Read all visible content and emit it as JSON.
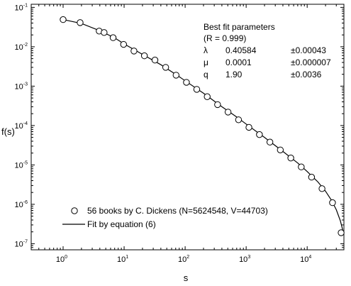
{
  "chart_data": {
    "type": "scatter",
    "xscale": "log",
    "yscale": "log",
    "xlim": [
      0.3,
      40000
    ],
    "ylim": [
      7e-08,
      0.12
    ],
    "xlabel": "s",
    "ylabel": "f(s)",
    "grid": false,
    "x_ticks": [
      {
        "base": "10",
        "exp": "0",
        "value": 1
      },
      {
        "base": "10",
        "exp": "1",
        "value": 10
      },
      {
        "base": "10",
        "exp": "2",
        "value": 100
      },
      {
        "base": "10",
        "exp": "3",
        "value": 1000
      },
      {
        "base": "10",
        "exp": "4",
        "value": 10000
      }
    ],
    "y_ticks": [
      {
        "base": "10",
        "exp": "-1",
        "value": 0.1
      },
      {
        "base": "10",
        "exp": "-2",
        "value": 0.01
      },
      {
        "base": "10",
        "exp": "-3",
        "value": 0.001
      },
      {
        "base": "10",
        "exp": "-4",
        "value": 0.0001
      },
      {
        "base": "10",
        "exp": "-5",
        "value": 1e-05
      },
      {
        "base": "10",
        "exp": "-6",
        "value": 1e-06
      },
      {
        "base": "10",
        "exp": "-7",
        "value": 1e-07
      }
    ],
    "series": [
      {
        "name": "56  books by C. Dickens (N=5624548, V=44703)",
        "marker": "open-circle",
        "x": [
          1,
          1.9,
          3.9,
          4.7,
          6.6,
          9.8,
          14.5,
          21.5,
          32,
          48,
          71,
          105,
          155,
          230,
          340,
          505,
          750,
          1110,
          1650,
          2450,
          3630,
          5390,
          8000,
          11800,
          17500,
          26000,
          36000
        ],
        "y": [
          0.049,
          0.041,
          0.025,
          0.023,
          0.017,
          0.0115,
          0.0078,
          0.0059,
          0.0046,
          0.003,
          0.0019,
          0.00125,
          0.00083,
          0.00054,
          0.00034,
          0.00022,
          0.00014,
          9e-05,
          5.9e-05,
          3.8e-05,
          2.4e-05,
          1.5e-05,
          8.9e-06,
          4.9e-06,
          2.5e-06,
          1.1e-06,
          1.9e-07
        ]
      },
      {
        "name": "Fit by equation (6)",
        "style": "solid-line",
        "x": [
          1,
          2,
          4,
          7,
          10,
          20,
          40,
          70,
          100,
          200,
          400,
          700,
          1000,
          2000,
          4000,
          7000,
          10000,
          15000,
          20000,
          25000,
          30000,
          35000,
          40000
        ],
        "y": [
          0.049,
          0.039,
          0.0255,
          0.0168,
          0.0118,
          0.0064,
          0.0035,
          0.002,
          0.00137,
          0.00066,
          0.0003,
          0.000165,
          0.000109,
          5e-05,
          2.2e-05,
          1.12e-05,
          6.8e-06,
          3.7e-06,
          2.15e-06,
          1.27e-06,
          7.3e-07,
          3.8e-07,
          1.7e-07
        ]
      }
    ],
    "legend_position": "bottom-left",
    "annotation": {
      "title": "Best fit parameters",
      "r_line": "(R  =  0.999)",
      "params": [
        {
          "symbol": "λ",
          "value": "0.40584",
          "error": "±0.00043"
        },
        {
          "symbol": "μ",
          "value": "0.0001",
          "error": "±0.000007"
        },
        {
          "symbol": "q",
          "value": "1.90",
          "error": "±0.0036"
        }
      ]
    }
  }
}
